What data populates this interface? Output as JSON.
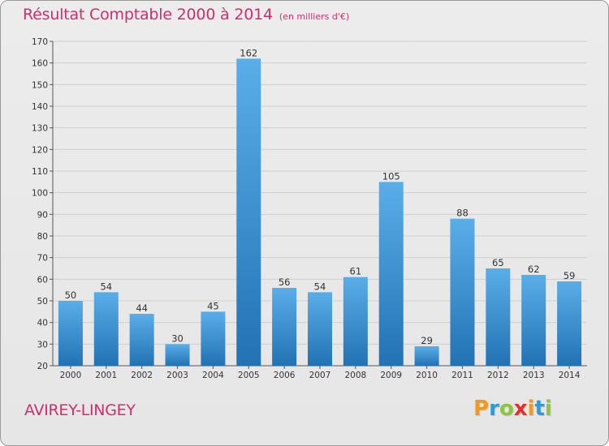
{
  "title": "Résultat Comptable 2000 à 2014",
  "subtitle": "(en milliers d'€)",
  "commune": "AVIREY-LINGEY",
  "logo": {
    "text": "Proxiti",
    "letters": [
      {
        "ch": "P",
        "color": "#f39a1e"
      },
      {
        "ch": "r",
        "color": "#2e9bd6"
      },
      {
        "ch": "o",
        "color": "#8cc63f"
      },
      {
        "ch": "x",
        "color": "#e2312d"
      },
      {
        "ch": "i",
        "color": "#f39a1e"
      },
      {
        "ch": "t",
        "color": "#2e9bd6"
      },
      {
        "ch": "i",
        "color": "#8cc63f"
      }
    ]
  },
  "colors": {
    "accent": "#cc2f6e",
    "bar_light": "#5aaee8",
    "bar_dark": "#2272b4",
    "grid": "#cfcfcf",
    "axis": "#555555"
  },
  "chart_data": {
    "type": "bar",
    "title": "Résultat Comptable 2000 à 2014",
    "subtitle": "(en milliers d'€)",
    "xlabel": "",
    "ylabel": "",
    "categories": [
      "2000",
      "2001",
      "2002",
      "2003",
      "2004",
      "2005",
      "2006",
      "2007",
      "2008",
      "2009",
      "2010",
      "2011",
      "2012",
      "2013",
      "2014"
    ],
    "values": [
      50,
      54,
      44,
      30,
      45,
      162,
      56,
      54,
      61,
      105,
      29,
      88,
      65,
      62,
      59
    ],
    "ylim": [
      20,
      170
    ],
    "yticks": [
      20,
      30,
      40,
      50,
      60,
      70,
      80,
      90,
      100,
      110,
      120,
      130,
      140,
      150,
      160,
      170
    ],
    "grid": true,
    "legend": "none"
  }
}
